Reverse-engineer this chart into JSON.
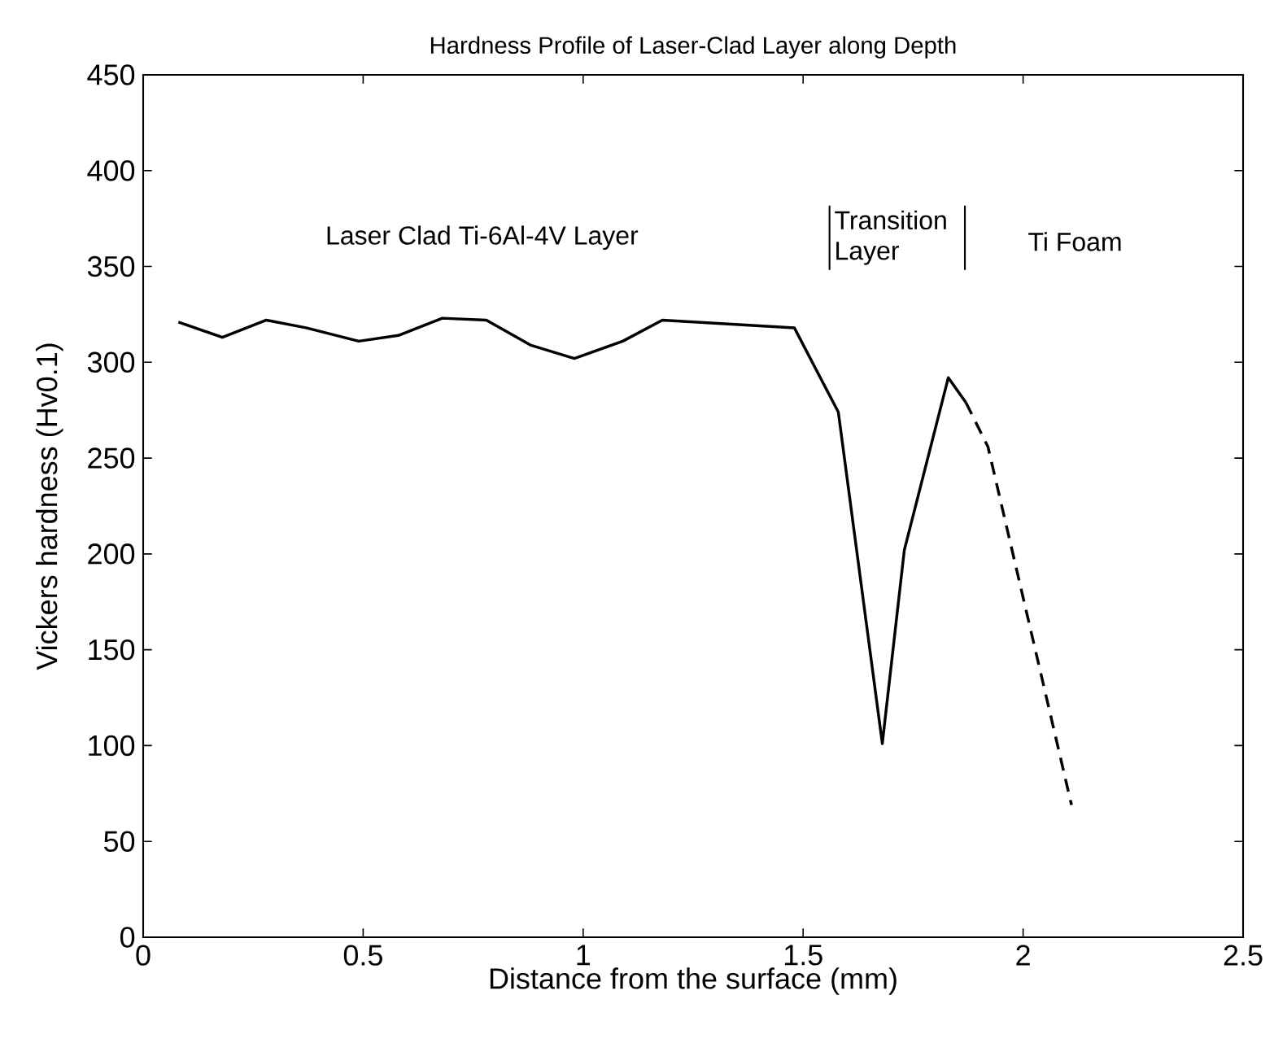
{
  "chart_data": {
    "type": "line",
    "title": "Hardness Profile of Laser-Clad Layer along Depth",
    "xlabel": "Distance from the surface (mm)",
    "ylabel": "Vickers hardness (Hv0.1)",
    "xlim": [
      0,
      2.5
    ],
    "ylim": [
      0,
      450
    ],
    "xticks": [
      0,
      0.5,
      1,
      1.5,
      2,
      2.5
    ],
    "yticks": [
      0,
      50,
      100,
      150,
      200,
      250,
      300,
      350,
      400,
      450
    ],
    "annotations": [
      "Laser Clad Ti-6Al-4V Layer",
      "Transition Layer",
      "Ti Foam"
    ],
    "series": [
      {
        "color": "#000000",
        "line_style": "solid",
        "x": [
          0.08,
          0.18,
          0.28,
          0.37,
          0.49,
          0.58,
          0.68,
          0.78,
          0.88,
          0.98,
          1.09,
          1.18,
          1.48,
          1.58,
          1.68,
          1.73,
          1.83,
          1.87
        ],
        "values": [
          321,
          313,
          322,
          318,
          311,
          314,
          323,
          322,
          309,
          302,
          311,
          322,
          318,
          274,
          101,
          202,
          292,
          279
        ]
      },
      {
        "color": "#000000",
        "line_style": "dashed",
        "x": [
          1.87,
          1.92,
          2.11
        ],
        "values": [
          279,
          256,
          69
        ]
      }
    ]
  }
}
